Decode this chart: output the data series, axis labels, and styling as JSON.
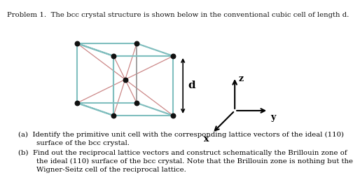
{
  "title": "Problem 1.  The bcc crystal structure is shown below in the conventional cubic cell of length d.",
  "background": "#ffffff",
  "cube_gray_color": "#999999",
  "cube_teal_color": "#80bfbf",
  "diagonal_color": "#cc8888",
  "dot_color": "#111111",
  "d_label": "d",
  "x_label": "x",
  "y_label": "y",
  "z_label": "z",
  "text_a1": "(a)  Identify the primitive unit cell with the corresponding lattice vectors of the ideal (110)",
  "text_a2": "surface of the bcc crystal.",
  "text_b1": "(b)  Find out the reciprocal lattice vectors and construct schematically the Brillouin zone of",
  "text_b2": "the ideal (110) surface of the bcc crystal. Note that the Brillouin zone is nothing but the",
  "text_b3": "Wigner-Seitz cell of the reciprocal lattice."
}
